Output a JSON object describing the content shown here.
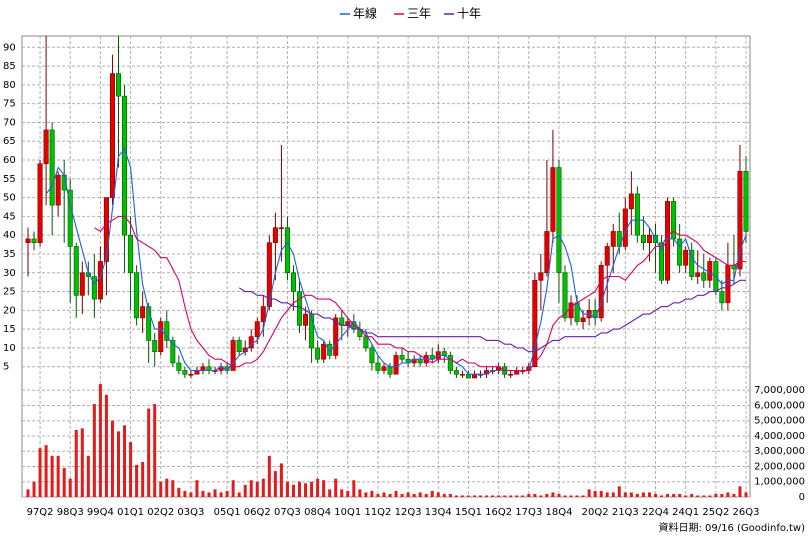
{
  "chart_data": {
    "type": "candlestick",
    "categories": [
      null,
      null,
      "97Q2",
      null,
      null,
      null,
      null,
      "98Q3",
      null,
      null,
      null,
      null,
      "99Q4",
      null,
      null,
      null,
      null,
      "01Q1",
      null,
      null,
      null,
      null,
      "02Q2",
      null,
      null,
      null,
      null,
      "03Q3",
      null,
      null,
      null,
      null,
      null,
      "05Q1",
      null,
      null,
      null,
      null,
      "06Q2",
      null,
      null,
      null,
      null,
      "07Q3",
      null,
      null,
      null,
      null,
      "08Q4",
      null,
      null,
      null,
      null,
      "10Q1",
      null,
      null,
      null,
      null,
      "11Q2",
      null,
      null,
      null,
      null,
      "12Q3",
      null,
      null,
      null,
      null,
      "13Q4",
      null,
      null,
      null,
      null,
      "15Q1",
      null,
      null,
      null,
      null,
      "16Q2",
      null,
      null,
      null,
      null,
      "17Q3",
      null,
      null,
      null,
      null,
      "18Q4",
      null,
      null,
      null,
      null,
      null,
      "20Q2",
      null,
      null,
      null,
      null,
      "21Q3",
      null,
      null,
      null,
      null,
      "22Q4",
      null,
      null,
      null,
      null,
      "24Q1",
      null,
      null,
      null,
      null,
      "25Q2",
      null,
      null,
      null,
      null,
      "26Q3"
    ],
    "open": [
      38,
      39,
      38,
      59,
      68,
      48,
      56,
      52,
      37,
      24,
      30,
      29,
      23,
      33,
      50,
      83,
      77,
      40,
      30,
      18,
      21,
      12,
      9,
      17,
      12,
      6,
      4,
      3,
      3,
      4,
      5,
      4,
      4,
      5,
      4,
      12,
      9,
      10,
      13,
      17,
      21,
      38,
      42,
      42,
      30,
      25,
      16,
      19,
      10,
      7,
      11,
      8,
      18,
      16,
      17,
      15,
      13,
      10,
      6,
      4,
      5,
      3,
      8,
      7,
      6,
      7,
      6,
      8,
      7,
      9,
      8,
      4,
      3,
      3,
      2,
      3,
      3,
      4,
      4,
      5,
      3,
      3,
      4,
      4,
      5,
      28,
      30,
      41,
      58,
      30,
      18,
      22,
      17,
      18,
      20,
      18,
      32,
      37,
      41,
      37,
      47,
      51,
      40,
      38,
      40,
      38,
      28,
      49,
      39,
      32,
      36,
      29,
      30,
      28,
      33,
      25,
      22,
      32,
      31,
      57
    ],
    "high": [
      42,
      41,
      60,
      93,
      70,
      57,
      60,
      55,
      38,
      33,
      33,
      35,
      37,
      50,
      88,
      93,
      80,
      45,
      32,
      25,
      22,
      14,
      18,
      20,
      13,
      8,
      5,
      4,
      5,
      6,
      7,
      5,
      6,
      6,
      13,
      13,
      12,
      15,
      18,
      24,
      40,
      46,
      64,
      45,
      32,
      28,
      21,
      20,
      12,
      12,
      12,
      19,
      20,
      18,
      19,
      17,
      15,
      11,
      8,
      6,
      6,
      9,
      10,
      9,
      8,
      8,
      9,
      10,
      11,
      10,
      9,
      5,
      4,
      4,
      4,
      4,
      5,
      5,
      6,
      6,
      4,
      5,
      5,
      6,
      30,
      35,
      60,
      68,
      60,
      32,
      24,
      24,
      20,
      23,
      23,
      33,
      38,
      43,
      46,
      50,
      57,
      53,
      45,
      42,
      43,
      40,
      50,
      50,
      43,
      37,
      38,
      36,
      35,
      34,
      34,
      28,
      38,
      40,
      64,
      61
    ],
    "low": [
      29,
      36,
      37,
      48,
      40,
      45,
      38,
      22,
      18,
      19,
      24,
      18,
      22,
      24,
      48,
      58,
      30,
      20,
      16,
      14,
      6,
      5,
      8,
      10,
      5,
      3,
      2,
      2,
      3,
      3,
      3,
      3,
      3,
      3,
      4,
      8,
      8,
      9,
      11,
      13,
      20,
      28,
      33,
      28,
      20,
      14,
      12,
      6,
      6,
      6,
      7,
      7,
      12,
      13,
      14,
      12,
      9,
      4,
      3,
      3,
      2,
      3,
      6,
      5,
      5,
      5,
      5,
      6,
      6,
      6,
      3,
      2,
      2,
      2,
      2,
      2,
      2,
      3,
      3,
      2,
      2,
      3,
      3,
      3,
      5,
      20,
      29,
      38,
      22,
      17,
      16,
      16,
      15,
      16,
      16,
      17,
      22,
      30,
      35,
      36,
      40,
      38,
      36,
      33,
      30,
      27,
      27,
      37,
      30,
      30,
      28,
      27,
      26,
      26,
      24,
      20,
      20,
      27,
      29,
      38
    ],
    "close": [
      39,
      38,
      59,
      68,
      48,
      56,
      52,
      37,
      24,
      30,
      29,
      23,
      33,
      50,
      83,
      77,
      40,
      30,
      18,
      21,
      12,
      9,
      17,
      12,
      6,
      4,
      3,
      3,
      4,
      5,
      4,
      4,
      5,
      4,
      12,
      9,
      10,
      13,
      17,
      21,
      38,
      42,
      42,
      30,
      25,
      16,
      19,
      10,
      7,
      11,
      8,
      18,
      16,
      17,
      15,
      13,
      10,
      6,
      4,
      5,
      3,
      8,
      7,
      6,
      7,
      6,
      8,
      7,
      9,
      8,
      4,
      3,
      3,
      2,
      3,
      3,
      4,
      4,
      5,
      3,
      3,
      4,
      4,
      5,
      28,
      30,
      41,
      58,
      30,
      18,
      22,
      17,
      18,
      20,
      18,
      32,
      37,
      41,
      37,
      47,
      51,
      40,
      38,
      40,
      38,
      28,
      49,
      39,
      32,
      36,
      29,
      30,
      28,
      33,
      25,
      22,
      32,
      31,
      57,
      41
    ],
    "up_color": "#e60000",
    "down_color": "#00c000",
    "series": [
      {
        "name": "年線",
        "color": "#1f5fe0",
        "values": [
          null,
          null,
          null,
          51,
          53,
          58,
          56,
          48,
          42,
          36,
          30,
          27,
          29,
          34,
          47,
          61,
          63,
          58,
          41,
          27,
          20,
          15,
          15,
          13,
          11,
          10,
          6,
          4,
          4,
          4,
          4,
          4,
          5,
          4,
          6,
          8,
          9,
          11,
          12,
          15,
          22,
          30,
          36,
          38,
          35,
          28,
          23,
          18,
          13,
          12,
          9,
          11,
          13,
          15,
          17,
          15,
          14,
          11,
          8,
          6,
          5,
          5,
          6,
          6,
          7,
          7,
          7,
          7,
          8,
          8,
          7,
          6,
          5,
          3,
          3,
          3,
          3,
          4,
          4,
          4,
          4,
          4,
          4,
          4,
          10,
          17,
          26,
          39,
          40,
          37,
          32,
          22,
          19,
          19,
          18,
          22,
          27,
          32,
          37,
          41,
          44,
          44,
          44,
          42,
          39,
          36,
          39,
          39,
          37,
          39,
          34,
          32,
          31,
          30,
          29,
          27,
          28,
          28,
          36,
          40
        ]
      },
      {
        "name": "三年",
        "color": "#d6006a",
        "values": [
          null,
          null,
          null,
          null,
          null,
          null,
          null,
          null,
          null,
          null,
          null,
          42,
          41,
          43,
          44,
          45,
          45,
          43,
          39,
          38,
          37,
          36,
          34,
          34,
          31,
          28,
          21,
          15,
          12,
          10,
          8,
          7,
          7,
          6,
          5,
          5,
          6,
          6,
          7,
          9,
          12,
          15,
          18,
          20,
          22,
          23,
          24,
          24,
          23,
          23,
          23,
          22,
          20,
          18,
          16,
          15,
          13,
          13,
          11,
          11,
          11,
          10,
          10,
          9,
          9,
          8,
          7,
          6,
          7,
          7,
          7,
          6,
          7,
          6,
          6,
          5,
          5,
          5,
          5,
          4,
          4,
          4,
          4,
          4,
          6,
          8,
          11,
          16,
          18,
          19,
          21,
          22,
          23,
          24,
          25,
          28,
          29,
          29,
          29,
          28,
          30,
          32,
          33,
          35,
          37,
          37,
          40,
          41,
          40,
          40,
          39,
          38,
          36,
          35,
          34,
          33,
          32,
          32,
          33,
          33
        ]
      },
      {
        "name": "十年",
        "color": "#6a1fb0",
        "values": [
          null,
          null,
          null,
          null,
          null,
          null,
          null,
          null,
          null,
          null,
          null,
          null,
          null,
          null,
          null,
          null,
          null,
          null,
          null,
          null,
          null,
          null,
          null,
          null,
          null,
          null,
          null,
          null,
          null,
          null,
          null,
          null,
          null,
          null,
          null,
          26,
          25,
          25,
          24,
          24,
          23,
          23,
          22,
          22,
          21,
          21,
          20,
          19,
          19,
          18,
          18,
          17,
          16,
          16,
          15,
          15,
          14,
          14,
          13,
          13,
          13,
          13,
          13,
          13,
          13,
          13,
          13,
          13,
          13,
          13,
          13,
          13,
          13,
          13,
          13,
          13,
          12,
          12,
          12,
          11,
          11,
          10,
          10,
          9,
          9,
          10,
          11,
          12,
          12,
          13,
          13,
          13,
          13,
          13,
          13,
          14,
          14,
          15,
          15,
          16,
          17,
          18,
          19,
          19,
          20,
          21,
          21,
          22,
          22,
          23,
          23,
          24,
          24,
          25,
          25,
          26,
          26,
          27,
          28,
          28
        ]
      }
    ],
    "ylim": [
      2,
      93
    ],
    "yticks": [
      5,
      10,
      15,
      20,
      25,
      30,
      35,
      40,
      45,
      50,
      55,
      60,
      65,
      70,
      75,
      80,
      85,
      90
    ],
    "volume": {
      "color": "#e41b1b",
      "values": [
        500000,
        1000000,
        3200000,
        3400000,
        2700000,
        2700000,
        1900000,
        1200000,
        4400000,
        4500000,
        2700000,
        6100000,
        7400000,
        6700000,
        5000000,
        4300000,
        4700000,
        3600000,
        2100000,
        2300000,
        5800000,
        6100000,
        1000000,
        1200000,
        1100000,
        600000,
        400000,
        300000,
        1100000,
        400000,
        300000,
        500000,
        300000,
        400000,
        1100000,
        300000,
        800000,
        1100000,
        1000000,
        1200000,
        2700000,
        1700000,
        2200000,
        1000000,
        800000,
        1000000,
        900000,
        1000000,
        1200000,
        1100000,
        500000,
        1200000,
        500000,
        400000,
        1100000,
        500000,
        300000,
        400000,
        200000,
        300000,
        200000,
        400000,
        200000,
        300000,
        200000,
        300000,
        200000,
        400000,
        300000,
        200000,
        200000,
        100000,
        100000,
        100000,
        100000,
        100000,
        100000,
        100000,
        100000,
        100000,
        100000,
        100000,
        100000,
        200000,
        200000,
        100000,
        200000,
        300000,
        200000,
        100000,
        100000,
        100000,
        100000,
        500000,
        400000,
        400000,
        300000,
        300000,
        700000,
        300000,
        300000,
        200000,
        300000,
        300000,
        200000,
        100000,
        200000,
        200000,
        200000,
        100000,
        200000,
        100000,
        100000,
        100000,
        200000,
        200000,
        300000,
        200000,
        700000,
        300000
      ],
      "ylim": [
        0,
        7800000
      ],
      "yticks": [
        0,
        {
          "value": 1000000,
          "label": "1,000,000"
        },
        {
          "value": 2000000,
          "label": "2,000,000"
        },
        {
          "value": 3000000,
          "label": "3,000,000"
        },
        {
          "value": 4000000,
          "label": "4,000,000"
        },
        {
          "value": 5000000,
          "label": "5,000,000"
        },
        {
          "value": 6000000,
          "label": "6,000,000"
        },
        {
          "value": 7000000,
          "label": "7,000,000"
        }
      ]
    },
    "grid": true,
    "legend": "top",
    "source": "資料日期: 09/16 (Goodinfo.tw)"
  }
}
